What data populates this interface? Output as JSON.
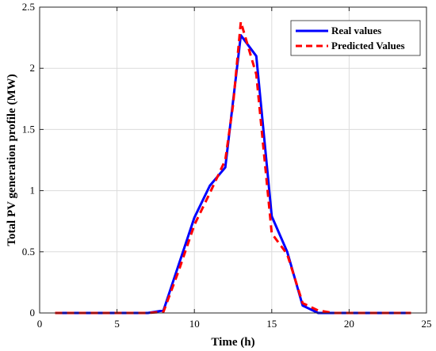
{
  "chart_data": {
    "type": "line",
    "xlabel": "Time (h)",
    "ylabel": "Total PV generation profile (MW)",
    "xlim": [
      0,
      25
    ],
    "ylim": [
      0,
      2.5
    ],
    "xticks": [
      0,
      5,
      10,
      15,
      20,
      25
    ],
    "xtick_labels": [
      "0",
      "5",
      "10",
      "15",
      "20",
      "25"
    ],
    "yticks": [
      0,
      0.5,
      1,
      1.5,
      2,
      2.5
    ],
    "ytick_labels": [
      "0",
      "0.5",
      "1",
      "1.5",
      "2",
      "2.5"
    ],
    "grid": true,
    "legend_position": "top-right",
    "series": [
      {
        "name": "Real values",
        "color": "#0000ff",
        "style": "solid",
        "x": [
          1,
          2,
          3,
          4,
          5,
          6,
          7,
          8,
          9,
          10,
          11,
          12,
          13,
          14,
          15,
          16,
          17,
          18,
          19,
          20,
          21,
          22,
          23,
          24
        ],
        "y": [
          0,
          0,
          0,
          0,
          0,
          0,
          0,
          0.02,
          0.4,
          0.78,
          1.04,
          1.19,
          2.27,
          2.1,
          0.79,
          0.5,
          0.06,
          0,
          0,
          0,
          0,
          0,
          0,
          0
        ]
      },
      {
        "name": "Predicted Values",
        "color": "#ff0000",
        "style": "dashed",
        "x": [
          1,
          2,
          3,
          4,
          5,
          6,
          7,
          8,
          9,
          10,
          11,
          12,
          12.5,
          13,
          14,
          15,
          16,
          17,
          18,
          19,
          20,
          21,
          22,
          23,
          24
        ],
        "y": [
          0,
          0,
          0,
          0,
          0,
          0,
          0,
          0.01,
          0.35,
          0.72,
          0.98,
          1.25,
          1.7,
          2.38,
          1.95,
          0.65,
          0.48,
          0.08,
          0.02,
          0,
          0,
          0,
          0,
          0,
          0
        ]
      }
    ]
  }
}
